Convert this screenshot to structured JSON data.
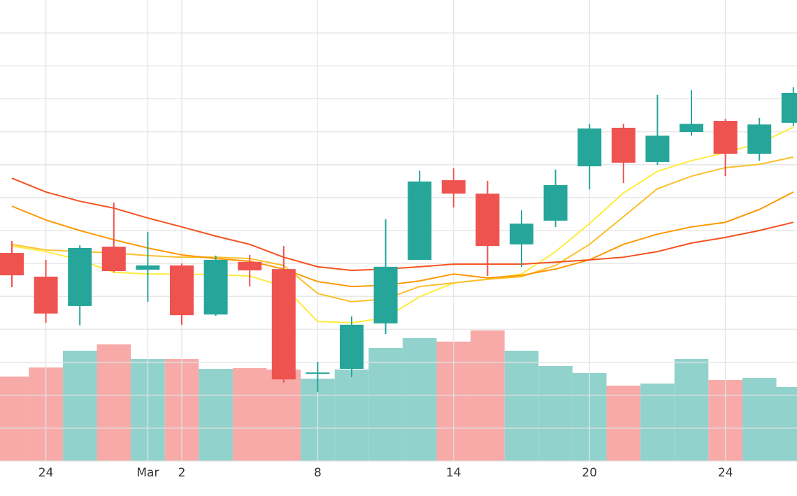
{
  "chart_data": {
    "type": "candlestick",
    "categories": [
      null,
      "24",
      null,
      null,
      "Mar",
      "2",
      null,
      null,
      null,
      "8",
      null,
      null,
      null,
      "14",
      null,
      null,
      null,
      "20",
      null,
      null,
      null,
      "24",
      null,
      null
    ],
    "open": [
      63.2,
      56.0,
      47.1,
      65.1,
      58.1,
      59.4,
      44.5,
      60.5,
      58.3,
      26.5,
      28.0,
      41.8,
      61.1,
      85.3,
      81.2,
      65.8,
      73.0,
      89.5,
      101.2,
      90.8,
      99.9,
      103.3,
      93.3,
      102.7
    ],
    "high": [
      66.8,
      61.1,
      65.5,
      78.5,
      69.6,
      60.0,
      62.4,
      62.6,
      65.3,
      30.1,
      43.9,
      73.4,
      88.2,
      88.9,
      85.1,
      76.2,
      88.5,
      102.4,
      102.4,
      111.2,
      112.6,
      103.9,
      104.2,
      113.5
    ],
    "low": [
      52.8,
      42.0,
      41.2,
      57.3,
      48.4,
      41.4,
      44.1,
      53.0,
      23.8,
      21.0,
      25.5,
      38.6,
      61.1,
      77.0,
      56.2,
      59.0,
      71.1,
      82.5,
      84.4,
      89.9,
      98.8,
      86.5,
      91.2,
      101.8
    ],
    "close": [
      56.4,
      44.8,
      64.7,
      57.7,
      59.4,
      44.3,
      61.1,
      57.9,
      24.8,
      26.9,
      41.4,
      59.0,
      84.9,
      81.2,
      65.3,
      72.1,
      83.8,
      101.0,
      90.6,
      98.8,
      102.4,
      93.3,
      102.2,
      111.8
    ],
    "volume": [
      121,
      134,
      158,
      167,
      146,
      146,
      132,
      133,
      131,
      118,
      131,
      162,
      176,
      171,
      187,
      158,
      136,
      126,
      108,
      111,
      146,
      116,
      119,
      106
    ],
    "up_color": "#26a69a",
    "down_color": "#ef5350",
    "volume_up_color": "#92d2cc",
    "volume_down_color": "#f7aaa8",
    "series": [
      {
        "color": "#ffeb3b",
        "values": [
          65.3,
          63.6,
          61.1,
          57.3,
          56.8,
          56.8,
          56.6,
          56.2,
          53.0,
          42.4,
          42.0,
          43.5,
          49.9,
          54.1,
          55.2,
          56.8,
          63.6,
          72.1,
          81.4,
          88.0,
          91.2,
          93.7,
          96.5,
          101.4
        ]
      },
      {
        "color": "#fbc02d",
        "values": [
          65.8,
          64.1,
          63.6,
          63.2,
          62.4,
          61.9,
          61.9,
          61.5,
          59.4,
          50.9,
          48.4,
          49.2,
          53.0,
          54.1,
          55.2,
          56.0,
          59.4,
          65.8,
          74.2,
          82.7,
          86.5,
          89.1,
          90.1,
          92.3
        ]
      },
      {
        "color": "#ff9800",
        "values": [
          77.4,
          73.2,
          70.0,
          67.2,
          64.7,
          62.6,
          61.5,
          60.7,
          58.3,
          54.5,
          53.0,
          53.4,
          54.7,
          56.8,
          55.6,
          56.4,
          58.3,
          61.1,
          65.8,
          68.9,
          71.1,
          72.5,
          76.4,
          81.7
        ]
      },
      {
        "color": "#f4511e",
        "values": [
          85.9,
          81.7,
          78.9,
          76.8,
          73.8,
          71.1,
          68.3,
          65.8,
          61.9,
          59.0,
          57.9,
          58.3,
          59.0,
          59.8,
          59.8,
          59.8,
          60.4,
          61.1,
          61.9,
          63.6,
          66.2,
          67.9,
          70.0,
          72.5
        ]
      }
    ],
    "ylim": [
      0,
      140
    ],
    "yticks": [
      0,
      10,
      20,
      30,
      40,
      50,
      60,
      70,
      80,
      90,
      100,
      110,
      120,
      130
    ],
    "y2lim": [
      0,
      660
    ],
    "grid": true
  }
}
